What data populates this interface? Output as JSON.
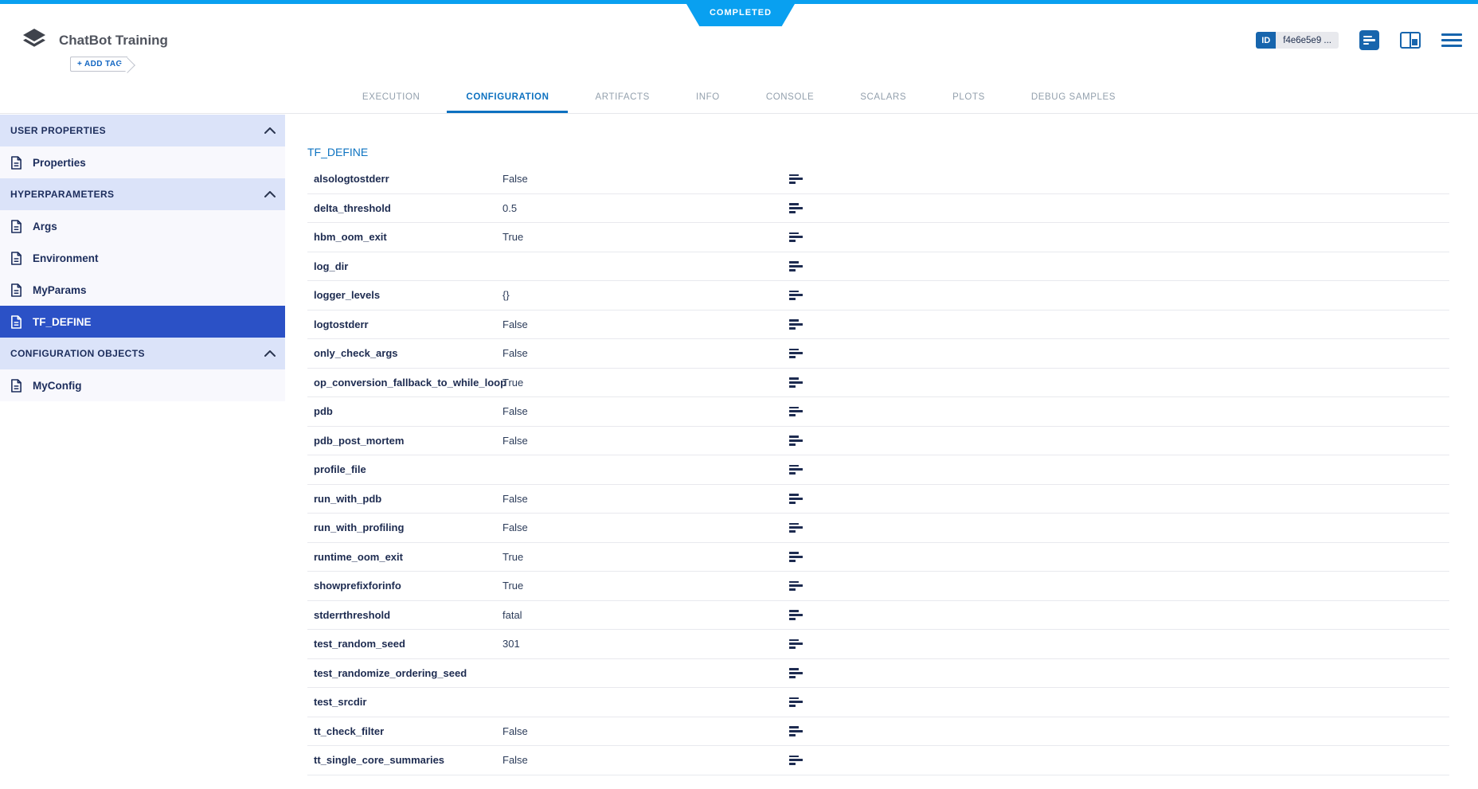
{
  "status_badge": "COMPLETED",
  "header": {
    "title": "ChatBot Training",
    "add_tag_label": "+ ADD TAG",
    "id_label": "ID",
    "id_value": "f4e6e5e9 ..."
  },
  "tabs": [
    {
      "label": "EXECUTION",
      "active": false
    },
    {
      "label": "CONFIGURATION",
      "active": true
    },
    {
      "label": "ARTIFACTS",
      "active": false
    },
    {
      "label": "INFO",
      "active": false
    },
    {
      "label": "CONSOLE",
      "active": false
    },
    {
      "label": "SCALARS",
      "active": false
    },
    {
      "label": "PLOTS",
      "active": false
    },
    {
      "label": "DEBUG SAMPLES",
      "active": false
    }
  ],
  "sidebar": {
    "sections": [
      {
        "title": "USER PROPERTIES",
        "items": [
          {
            "label": "Properties",
            "selected": false
          }
        ]
      },
      {
        "title": "HYPERPARAMETERS",
        "items": [
          {
            "label": "Args",
            "selected": false
          },
          {
            "label": "Environment",
            "selected": false
          },
          {
            "label": "MyParams",
            "selected": false
          },
          {
            "label": "TF_DEFINE",
            "selected": true
          }
        ]
      },
      {
        "title": "CONFIGURATION OBJECTS",
        "items": [
          {
            "label": "MyConfig",
            "selected": false
          }
        ]
      }
    ]
  },
  "content": {
    "section_title": "TF_DEFINE",
    "parameters": [
      {
        "name": "alsologtostderr",
        "value": "False"
      },
      {
        "name": "delta_threshold",
        "value": "0.5"
      },
      {
        "name": "hbm_oom_exit",
        "value": "True"
      },
      {
        "name": "log_dir",
        "value": ""
      },
      {
        "name": "logger_levels",
        "value": "{}"
      },
      {
        "name": "logtostderr",
        "value": "False"
      },
      {
        "name": "only_check_args",
        "value": "False"
      },
      {
        "name": "op_conversion_fallback_to_while_loop",
        "value": "True"
      },
      {
        "name": "pdb",
        "value": "False"
      },
      {
        "name": "pdb_post_mortem",
        "value": "False"
      },
      {
        "name": "profile_file",
        "value": ""
      },
      {
        "name": "run_with_pdb",
        "value": "False"
      },
      {
        "name": "run_with_profiling",
        "value": "False"
      },
      {
        "name": "runtime_oom_exit",
        "value": "True"
      },
      {
        "name": "showprefixforinfo",
        "value": "True"
      },
      {
        "name": "stderrthreshold",
        "value": "fatal"
      },
      {
        "name": "test_random_seed",
        "value": "301"
      },
      {
        "name": "test_randomize_ordering_seed",
        "value": ""
      },
      {
        "name": "test_srcdir",
        "value": ""
      },
      {
        "name": "tt_check_filter",
        "value": "False"
      },
      {
        "name": "tt_single_core_summaries",
        "value": "False"
      }
    ]
  },
  "icons": {
    "logo": "experiment-stack-icon",
    "header_right": [
      "details-icon",
      "split-panel-icon",
      "menu-icon"
    ],
    "tab_corner": "auto-refresh-icon",
    "section_chevron": "chevron-up-icon",
    "sidebar_item": "document-icon",
    "row_action": "description-lines-icon"
  },
  "colors": {
    "status_blue": "#09a0f0",
    "accent_blue": "#0d71c0",
    "icon_blue": "#1765ad",
    "sidebar_selected": "#2b51c6",
    "sidebar_band": "#dbe3f9",
    "sidebar_item_bg": "#f8f8fd",
    "navy_text": "#1c2d5c",
    "divider": "#e8e9ee"
  }
}
